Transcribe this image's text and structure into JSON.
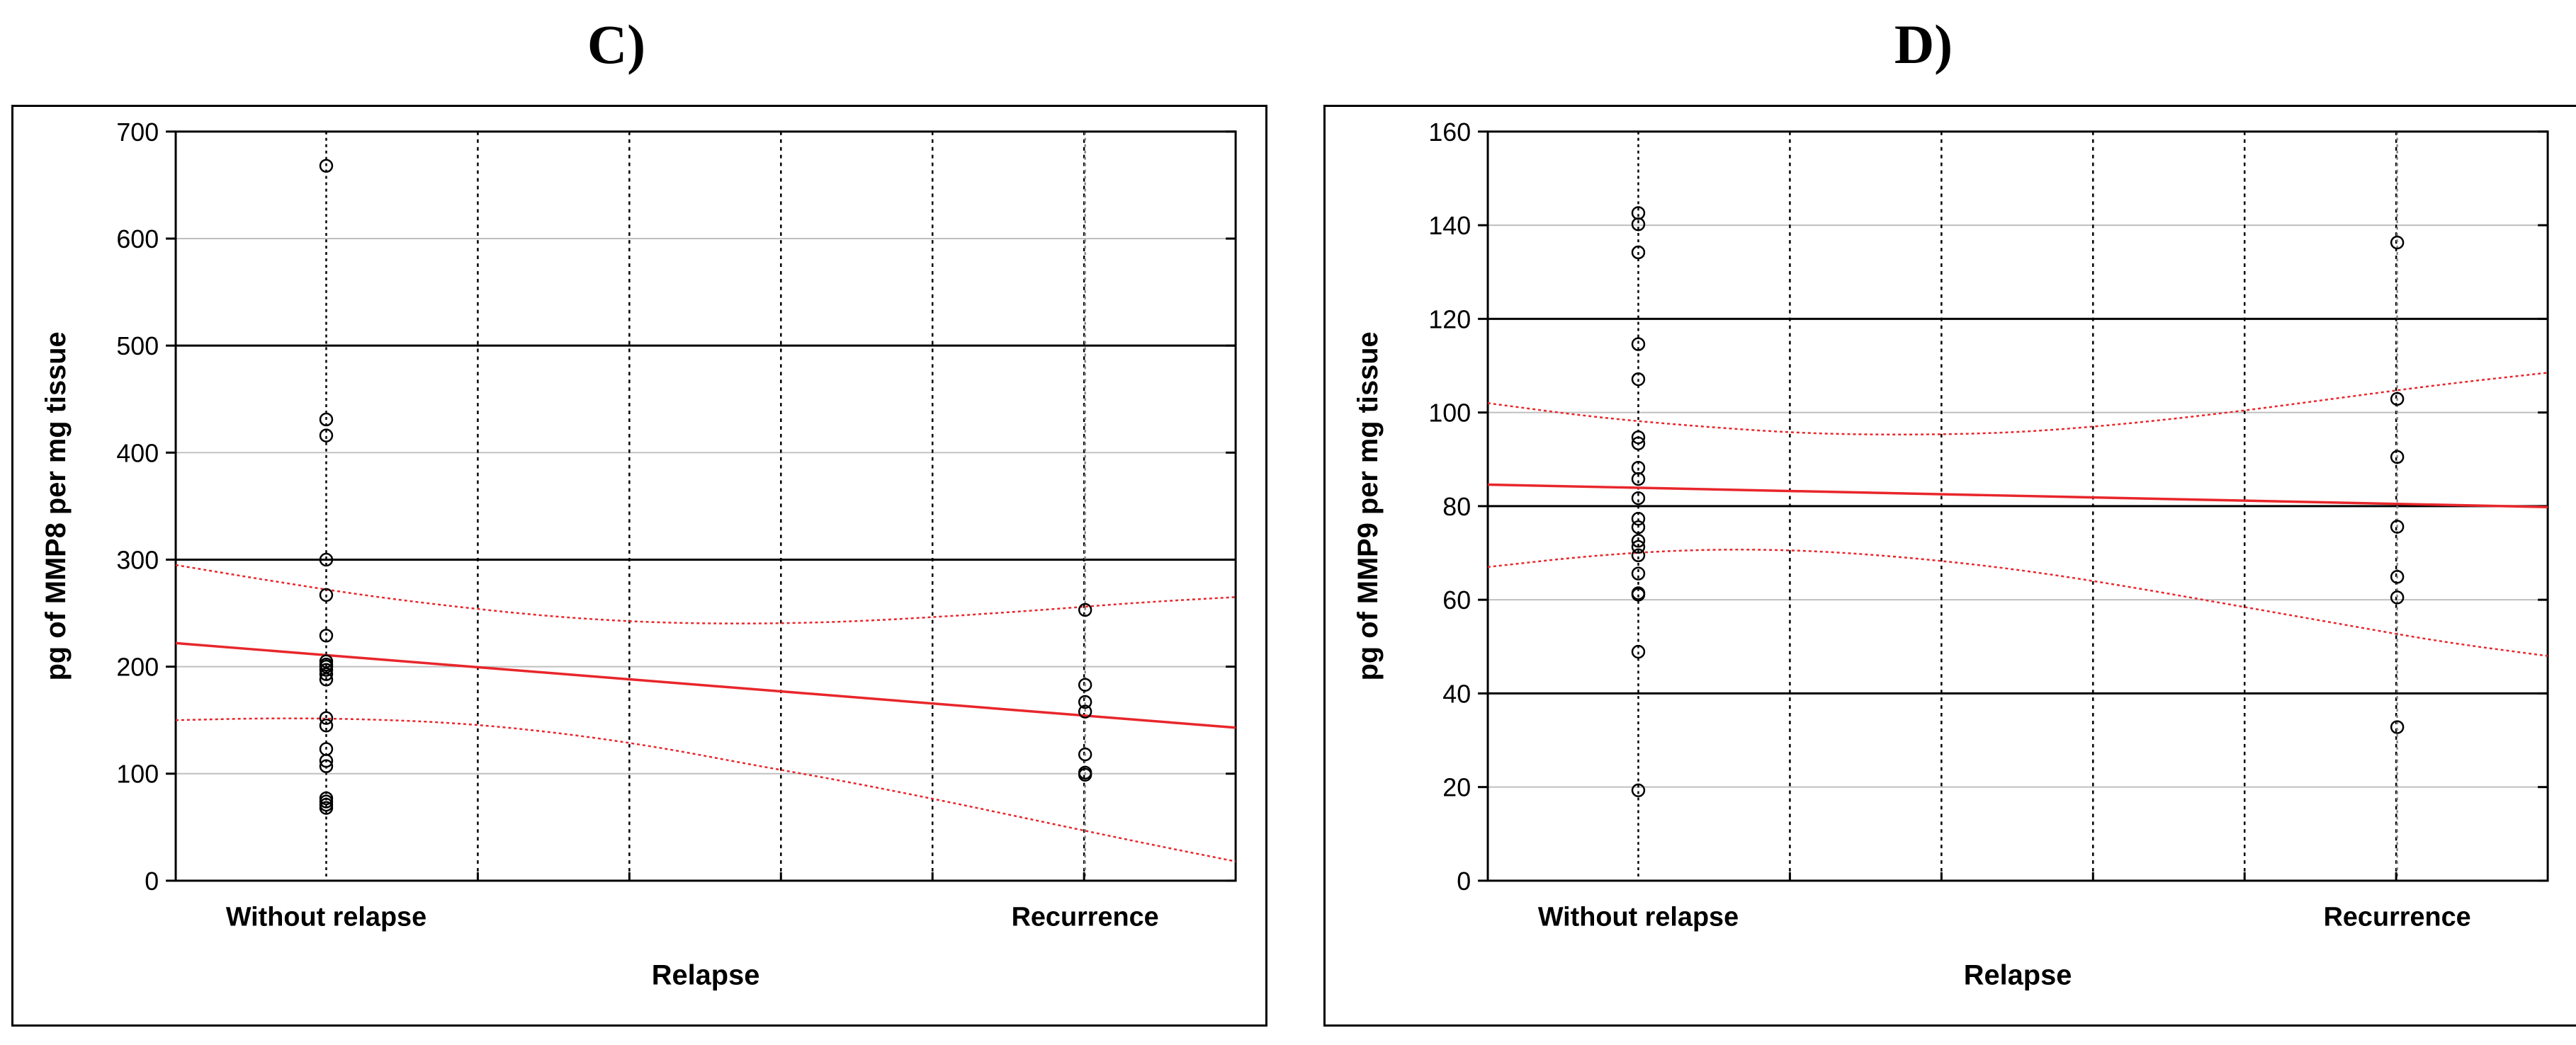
{
  "panels": [
    {
      "id": "c",
      "label": "C)"
    },
    {
      "id": "d",
      "label": "D)"
    }
  ],
  "colors": {
    "fit_line": "#e8262b",
    "axis": "#000000",
    "grid_light": "#bfbfbf",
    "points": "#000000"
  },
  "chart_data": [
    {
      "type": "scatter",
      "title": "C)",
      "xlabel": "Relapse",
      "ylabel": "pg of MMP8 per mg tissue",
      "categories": [
        "Without relapse",
        "Recurrence"
      ],
      "ylim": [
        0,
        700
      ],
      "yticks": [
        0,
        100,
        200,
        300,
        400,
        500,
        600,
        700
      ],
      "grid": true,
      "series": [
        {
          "category": "Without relapse",
          "values": [
            668,
            431,
            416,
            300,
            267,
            229,
            205,
            202,
            200,
            197,
            193,
            188,
            152,
            145,
            123,
            112,
            107,
            77,
            74,
            71,
            68
          ]
        },
        {
          "category": "Recurrence",
          "values": [
            253,
            183,
            167,
            158,
            118,
            101,
            99
          ]
        }
      ],
      "fit": {
        "y_at_left": 222,
        "y_at_right": 143
      },
      "confidence_band": {
        "upper": [
          295,
          280,
          266,
          255,
          246,
          241,
          240,
          242,
          247,
          253,
          260,
          265
        ],
        "lower": [
          150,
          152,
          151,
          147,
          138,
          125,
          108,
          92,
          74,
          55,
          36,
          18
        ]
      }
    },
    {
      "type": "scatter",
      "title": "D)",
      "xlabel": "Relapse",
      "ylabel": "pg of MMP9 per mg tissue",
      "categories": [
        "Without relapse",
        "Recurrence"
      ],
      "ylim": [
        0,
        160
      ],
      "yticks": [
        0,
        20,
        40,
        60,
        80,
        100,
        120,
        140,
        160
      ],
      "grid": true,
      "series": [
        {
          "category": "Without relapse",
          "values": [
            142.6,
            140.2,
            134.2,
            114.6,
            107.1,
            94.7,
            93.4,
            88.2,
            85.8,
            81.7,
            77.3,
            75.5,
            72.6,
            71.3,
            69.5,
            65.6,
            61.4,
            61.1,
            48.9,
            19.3
          ]
        },
        {
          "category": "Recurrence",
          "values": [
            136.3,
            102.9,
            90.5,
            75.6,
            64.9,
            60.5,
            32.8
          ]
        }
      ],
      "fit": {
        "y_at_left": 84.6,
        "y_at_right": 79.8
      },
      "confidence_band": {
        "upper": [
          102,
          99,
          97,
          95.5,
          95.2,
          95.7,
          97.5,
          100,
          103,
          106,
          108.5
        ],
        "lower": [
          67,
          69.5,
          70.8,
          70.6,
          69,
          66.5,
          63,
          59,
          55,
          51,
          48
        ]
      }
    }
  ]
}
